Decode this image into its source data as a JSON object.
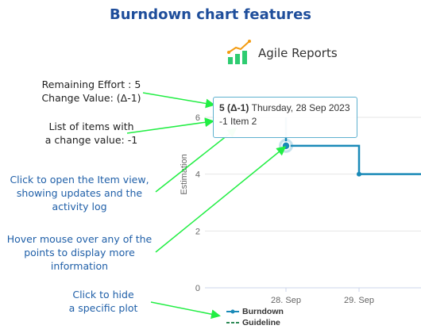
{
  "title": "Burndown chart features",
  "logo": {
    "text": "Agile Reports",
    "colors": {
      "bars": "#2ecc71",
      "line": "#f39c12"
    }
  },
  "notes": {
    "remaining": [
      "Remaining Effort : 5",
      "Change Value: (Δ-1)"
    ],
    "items_list": [
      "List of items with",
      "a change value: -1"
    ],
    "click_item": [
      "Click to open the Item view,",
      "showing updates and the",
      "activity log"
    ],
    "hover": [
      "Hover mouse over any of the",
      "points to display more",
      "information"
    ],
    "hide_plot": [
      "Click to hide",
      "a specific plot"
    ]
  },
  "tooltip": {
    "value": "5",
    "delta": "(Δ-1)",
    "date": "Thursday, 28 Sep 2023",
    "item": "-1 Item 2"
  },
  "chart_data": {
    "type": "line",
    "ylabel": "Estimation",
    "yticks": [
      "0",
      "2",
      "4",
      "6"
    ],
    "ylim": [
      0,
      6
    ],
    "xticks": [
      "28. Sep",
      "29. Sep"
    ],
    "grid": true,
    "legend_position": "bottom-left",
    "series": [
      {
        "name": "Burndown",
        "color": "#1a8ab8",
        "style": "step",
        "points": [
          {
            "x": "28. Sep",
            "y": 6
          },
          {
            "x": "28. Sep",
            "y": 5
          },
          {
            "x": "29. Sep",
            "y": 5
          },
          {
            "x": "29. Sep",
            "y": 4
          }
        ]
      },
      {
        "name": "Guideline",
        "color": "#2e8b57",
        "style": "dashed",
        "points": []
      }
    ]
  },
  "colors": {
    "arrow": "#22ee44",
    "title": "#1f4e9b",
    "note_blue": "#1f5fa8"
  }
}
